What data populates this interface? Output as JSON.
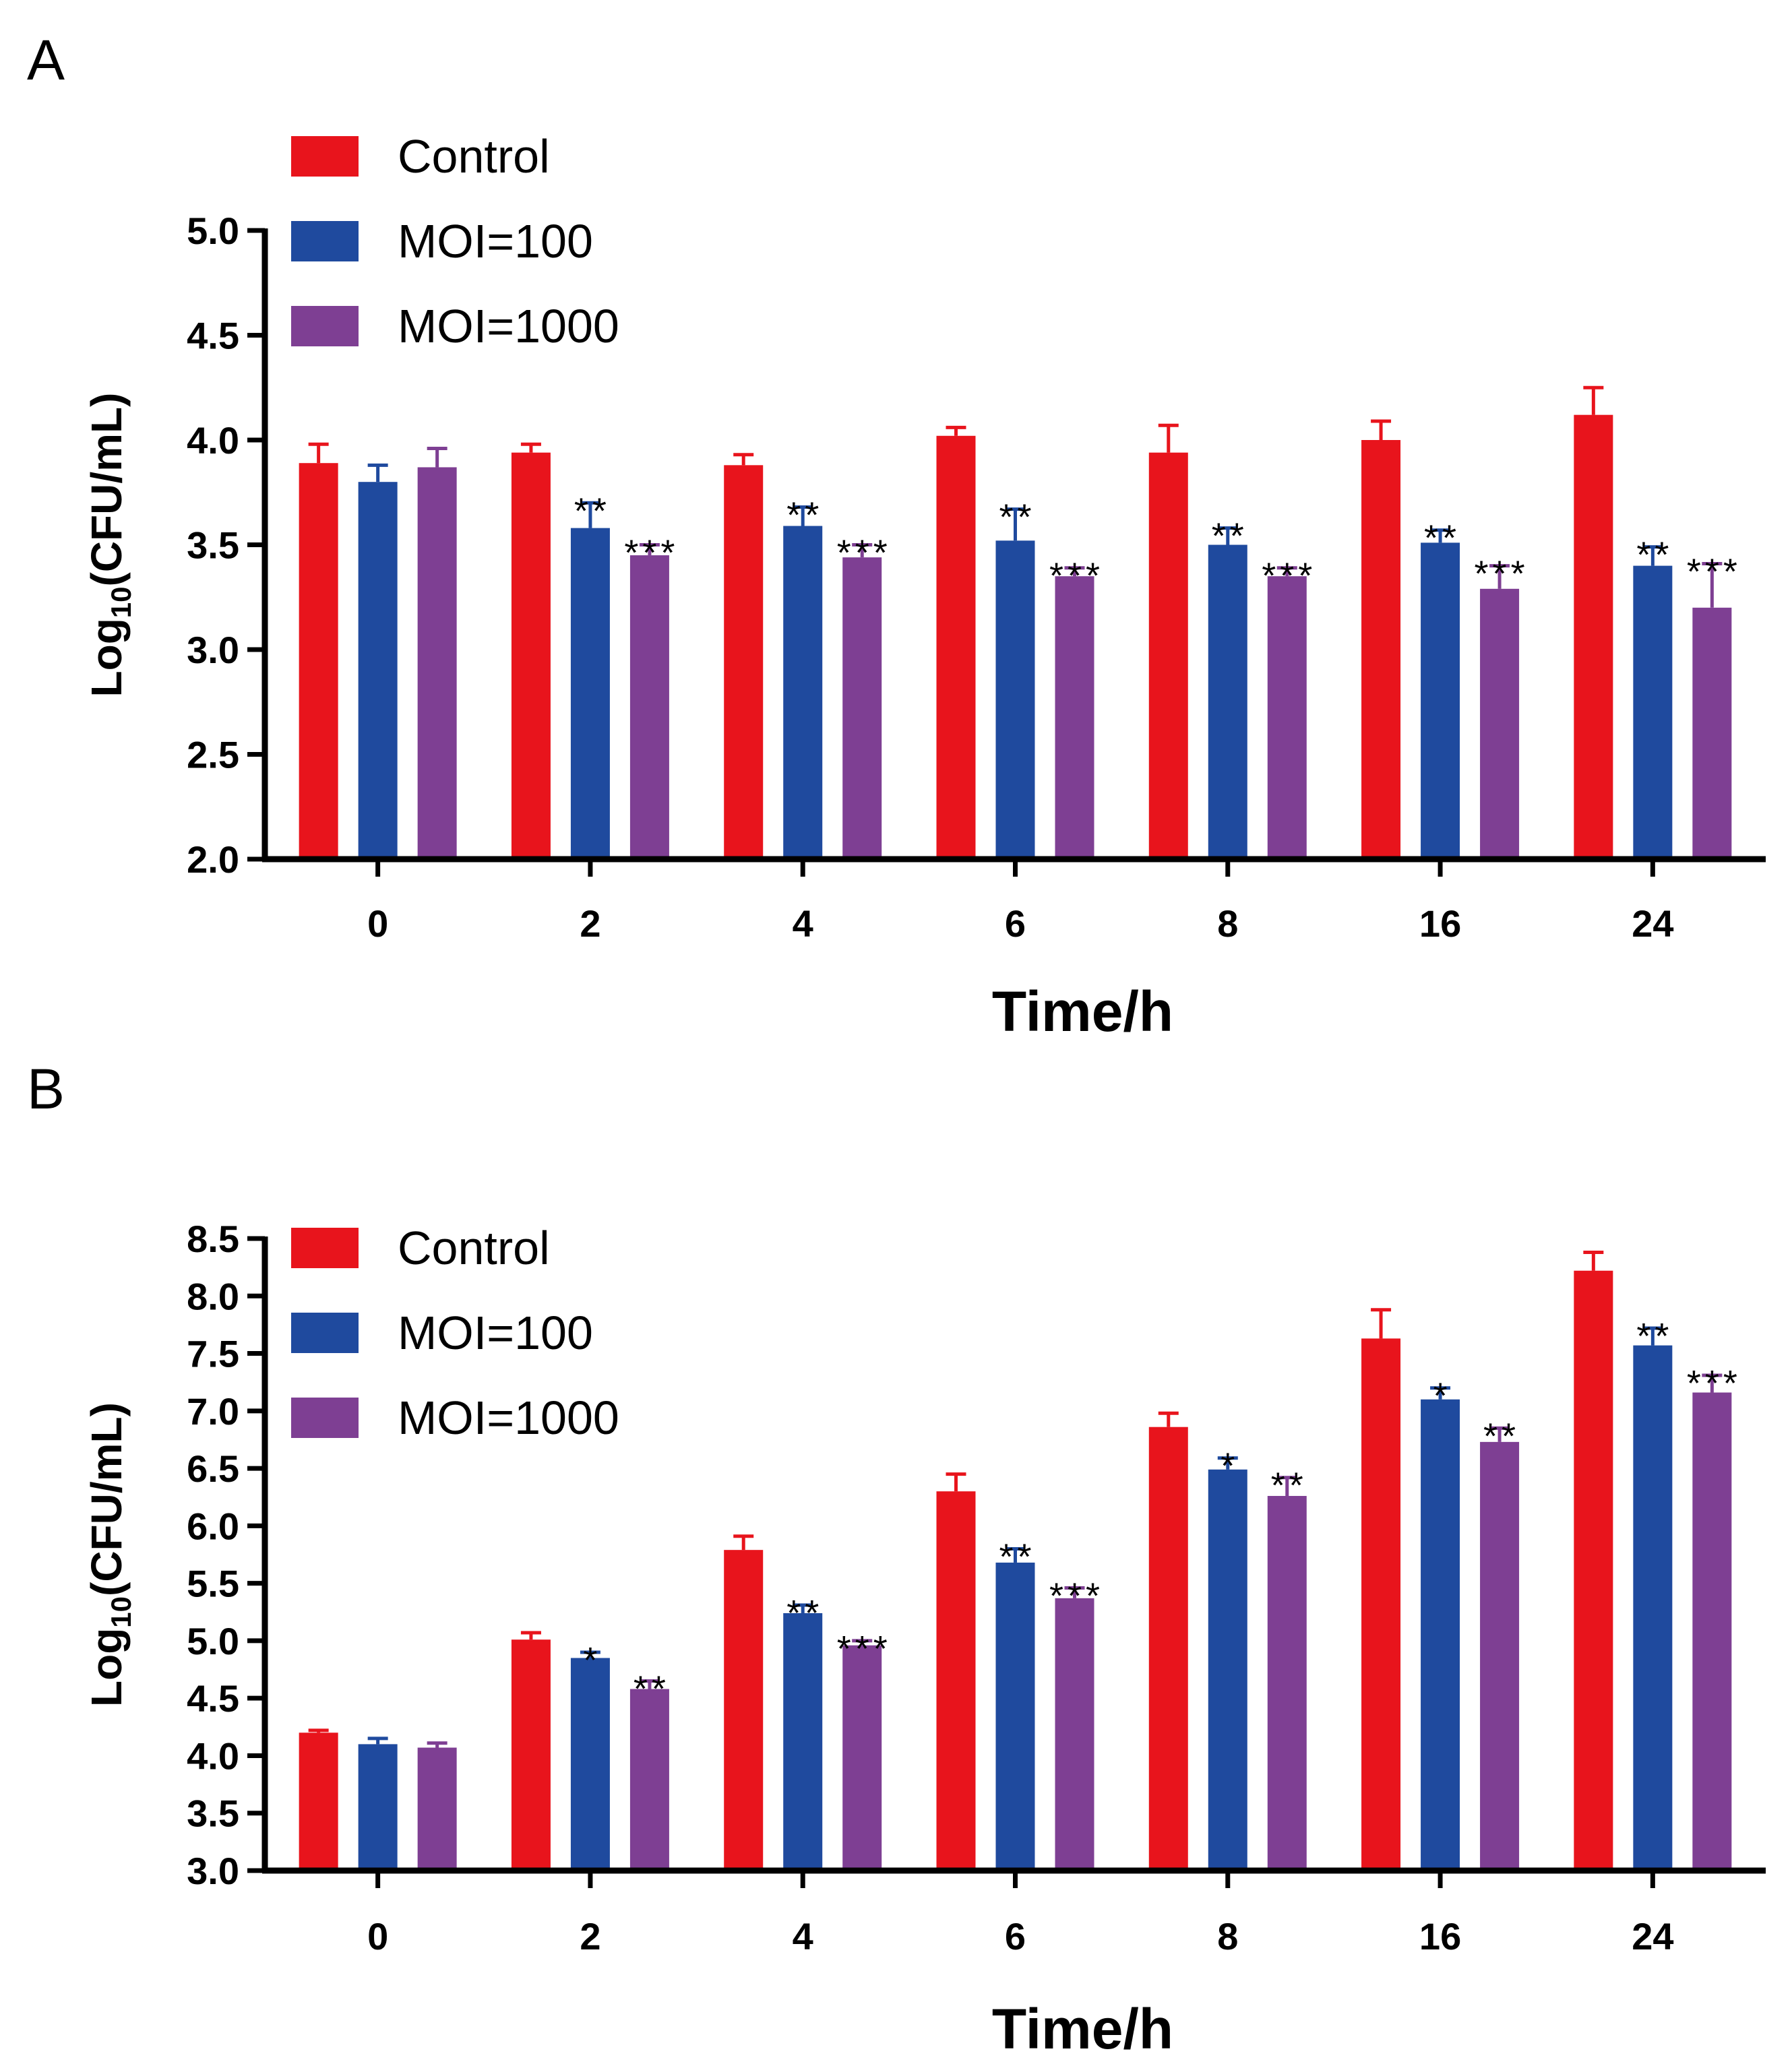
{
  "colors": {
    "Control": "#e8141c",
    "MOI=100": "#1f4a9e",
    "MOI=1000": "#7e3f93"
  },
  "chart_data": [
    {
      "panel": "A",
      "type": "bar",
      "xlabel": "Time/h",
      "ylabel": "Log10(CFU/mL)",
      "ylabel_main": "Log",
      "ylabel_sub": "10",
      "ylabel_rest": "(CFU/mL)",
      "ylim": [
        2.0,
        5.0
      ],
      "yticks": [
        "2.0",
        "2.5",
        "3.0",
        "3.5",
        "4.0",
        "4.5",
        "5.0"
      ],
      "categories": [
        "0",
        "2",
        "4",
        "6",
        "8",
        "16",
        "24"
      ],
      "legend": [
        "Control",
        "MOI=100",
        "MOI=1000"
      ],
      "series": [
        {
          "name": "Control",
          "values": [
            3.89,
            3.94,
            3.88,
            4.02,
            3.94,
            4.0,
            4.12
          ],
          "errors": [
            0.09,
            0.04,
            0.05,
            0.04,
            0.13,
            0.09,
            0.13
          ],
          "significance": [
            "",
            "",
            "",
            "",
            "",
            "",
            ""
          ]
        },
        {
          "name": "MOI=100",
          "values": [
            3.8,
            3.58,
            3.59,
            3.52,
            3.5,
            3.51,
            3.4
          ],
          "errors": [
            0.08,
            0.12,
            0.09,
            0.15,
            0.08,
            0.06,
            0.09
          ],
          "significance": [
            "",
            "**",
            "**",
            "**",
            "**",
            "**",
            "**"
          ]
        },
        {
          "name": "MOI=1000",
          "values": [
            3.87,
            3.45,
            3.44,
            3.35,
            3.35,
            3.29,
            3.2
          ],
          "errors": [
            0.09,
            0.05,
            0.06,
            0.04,
            0.04,
            0.11,
            0.21
          ],
          "significance": [
            "",
            "***",
            "***",
            "***",
            "***",
            "***",
            "***"
          ]
        }
      ]
    },
    {
      "panel": "B",
      "type": "bar",
      "xlabel": "Time/h",
      "ylabel": "Log10(CFU/mL)",
      "ylabel_main": "Log",
      "ylabel_sub": "10",
      "ylabel_rest": "(CFU/mL)",
      "ylim": [
        3.0,
        8.5
      ],
      "yticks": [
        "3.0",
        "3.5",
        "4.0",
        "4.5",
        "5.0",
        "5.5",
        "6.0",
        "6.5",
        "7.0",
        "7.5",
        "8.0",
        "8.5"
      ],
      "categories": [
        "0",
        "2",
        "4",
        "6",
        "8",
        "16",
        "24"
      ],
      "legend": [
        "Control",
        "MOI=100",
        "MOI=1000"
      ],
      "series": [
        {
          "name": "Control",
          "values": [
            4.2,
            5.01,
            5.79,
            6.3,
            6.86,
            7.63,
            8.22
          ],
          "errors": [
            0.02,
            0.06,
            0.12,
            0.15,
            0.12,
            0.25,
            0.16
          ],
          "significance": [
            "",
            "",
            "",
            "",
            "",
            "",
            ""
          ]
        },
        {
          "name": "MOI=100",
          "values": [
            4.1,
            4.85,
            5.24,
            5.68,
            6.49,
            7.1,
            7.57
          ],
          "errors": [
            0.05,
            0.05,
            0.07,
            0.12,
            0.1,
            0.1,
            0.15
          ],
          "significance": [
            "",
            "*",
            "**",
            "**",
            "*",
            "*",
            "**"
          ]
        },
        {
          "name": "MOI=1000",
          "values": [
            4.07,
            4.58,
            4.96,
            5.37,
            6.26,
            6.73,
            7.16
          ],
          "errors": [
            0.04,
            0.07,
            0.04,
            0.09,
            0.16,
            0.12,
            0.15
          ],
          "significance": [
            "",
            "**",
            "***",
            "***",
            "**",
            "**",
            "***"
          ]
        }
      ]
    }
  ]
}
